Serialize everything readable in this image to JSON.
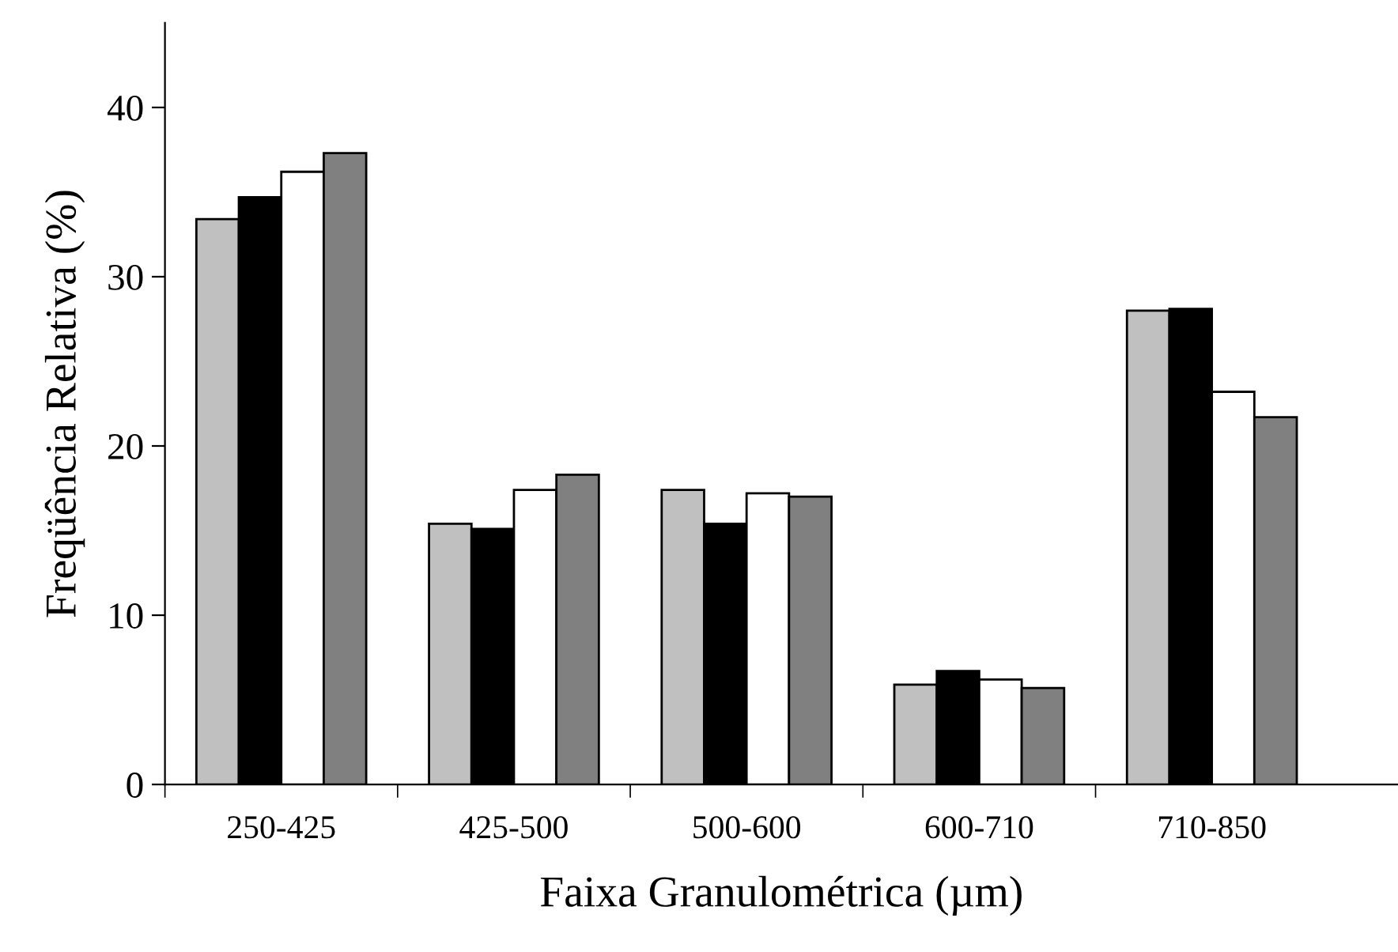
{
  "chart_data": {
    "type": "bar",
    "xlabel": "Faixa Granulométrica (µm)",
    "ylabel": "Freqüência Relativa (%)",
    "categories": [
      "250-425",
      "425-500",
      "500-600",
      "600-710",
      "710-850"
    ],
    "series": [
      {
        "color": "#c0c0c0",
        "values": [
          33.4,
          15.4,
          17.4,
          5.9,
          28.0
        ]
      },
      {
        "color": "#000000",
        "values": [
          34.7,
          15.1,
          15.4,
          6.7,
          28.1
        ]
      },
      {
        "color": "#ffffff",
        "values": [
          36.2,
          17.4,
          17.2,
          6.2,
          23.2
        ]
      },
      {
        "color": "#808080",
        "values": [
          37.3,
          18.3,
          17.0,
          5.7,
          21.7
        ]
      }
    ],
    "ylim": [
      0,
      45
    ],
    "yticks": [
      0,
      10,
      20,
      30,
      40
    ],
    "grid": false,
    "legend": false
  }
}
